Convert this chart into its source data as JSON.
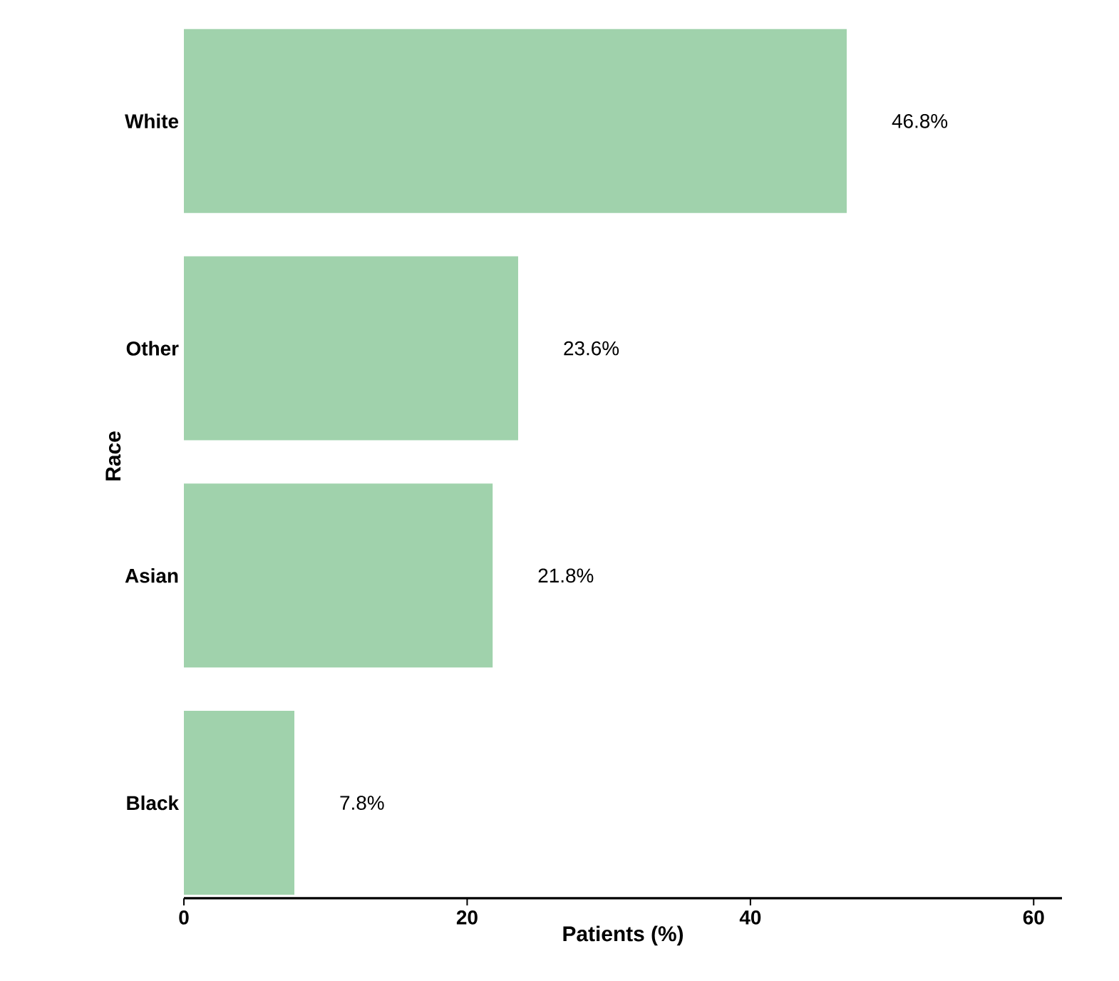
{
  "chart_data": {
    "type": "bar",
    "orientation": "horizontal",
    "xlabel": "Patients (%)",
    "ylabel": "Race",
    "categories": [
      "White",
      "Other",
      "Asian",
      "Black"
    ],
    "values": [
      46.8,
      23.6,
      21.8,
      7.8
    ],
    "color": "#a0d2ac",
    "value_labels": [
      "46.8%",
      "23.6%",
      "21.8%",
      "7.8%"
    ],
    "xlim": [
      0,
      62
    ],
    "xticks": [
      0,
      20,
      40,
      60
    ],
    "grid": false
  }
}
